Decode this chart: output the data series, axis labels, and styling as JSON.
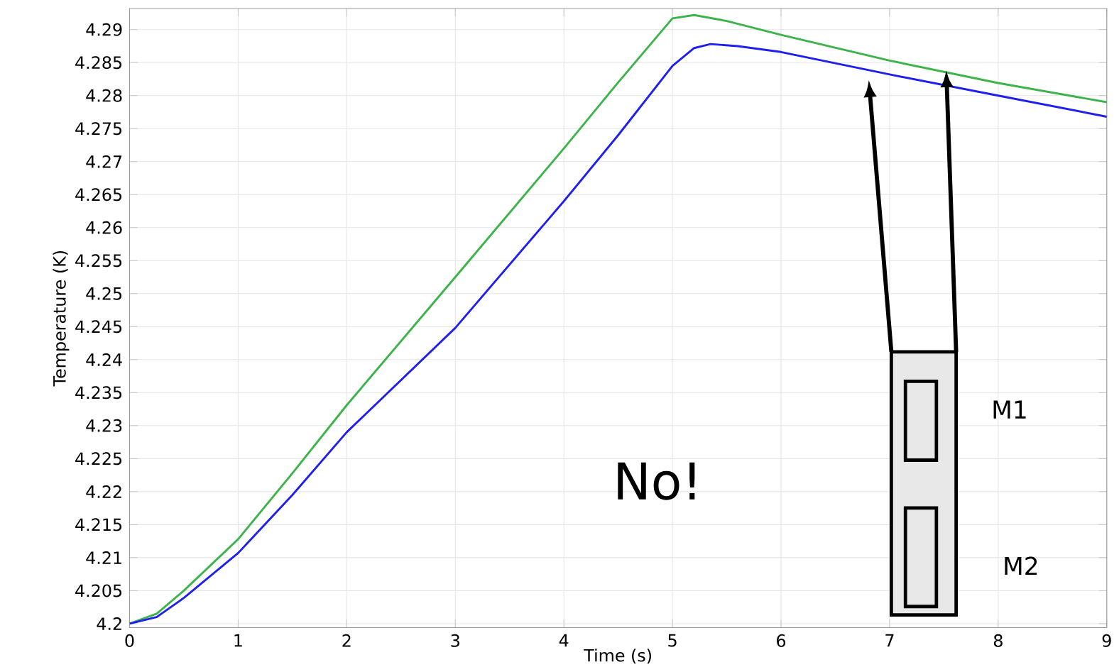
{
  "chart_data": {
    "type": "line",
    "xlabel": "Time (s)",
    "ylabel": "Temperature (K)",
    "xlim": [
      0,
      9
    ],
    "ylim": [
      4.1994,
      4.2932
    ],
    "xticks": [
      0,
      1,
      2,
      3,
      4,
      5,
      6,
      7,
      8,
      9
    ],
    "yticks": [
      4.2,
      4.205,
      4.21,
      4.215,
      4.22,
      4.225,
      4.23,
      4.235,
      4.24,
      4.245,
      4.25,
      4.255,
      4.26,
      4.265,
      4.27,
      4.275,
      4.28,
      4.285,
      4.29
    ],
    "grid": true,
    "annotations": [
      "No!",
      "M1",
      "M2"
    ],
    "series": [
      {
        "color": "#3cb44b",
        "x": [
          0,
          0.25,
          0.5,
          1,
          1.5,
          2,
          3,
          4,
          4.5,
          5,
          5.2,
          5.5,
          6,
          7,
          8,
          9
        ],
        "values": [
          4.2,
          4.2015,
          4.205,
          4.2128,
          4.2228,
          4.2331,
          4.2525,
          4.272,
          4.282,
          4.2917,
          4.2922,
          4.2913,
          4.2892,
          4.2853,
          4.2819,
          4.279
        ]
      },
      {
        "color": "#2020ee",
        "x": [
          0,
          0.25,
          0.5,
          1,
          1.5,
          2,
          3,
          4,
          4.5,
          5,
          5.2,
          5.35,
          5.6,
          6,
          7,
          8,
          9
        ],
        "values": [
          4.2,
          4.201,
          4.2039,
          4.2107,
          4.2195,
          4.229,
          4.2448,
          4.264,
          4.274,
          4.2845,
          4.2872,
          4.2878,
          4.2875,
          4.2866,
          4.2832,
          4.28,
          4.2768
        ]
      }
    ]
  }
}
